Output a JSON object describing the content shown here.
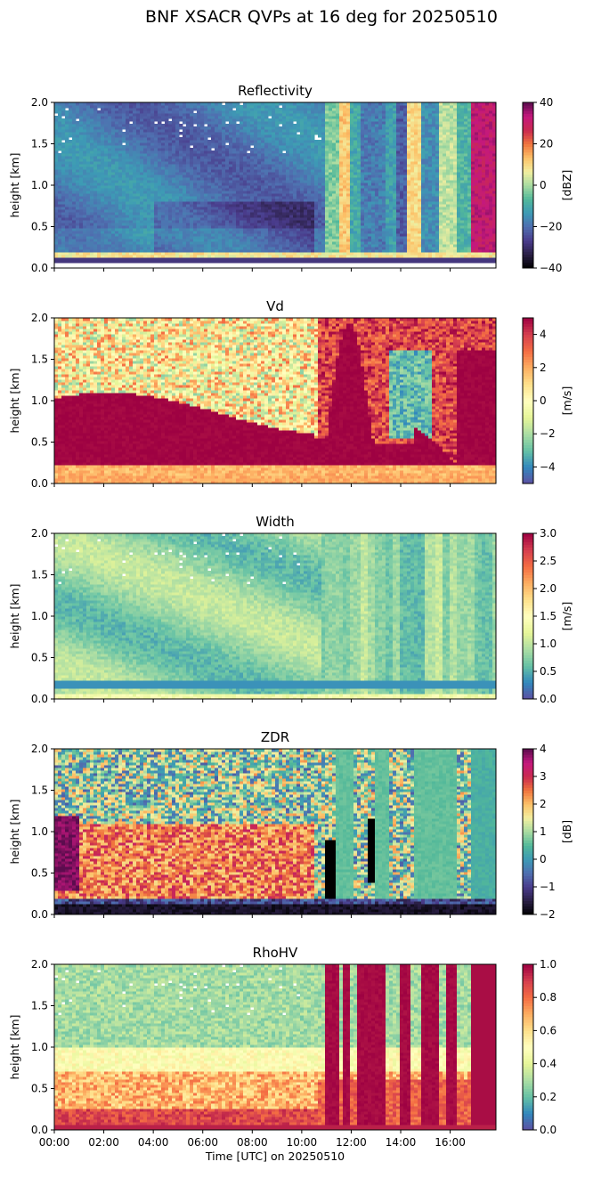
{
  "figure_title": "BNF XSACR QVPs at 16 deg for 20250510",
  "chart_data": [
    {
      "type": "heatmap",
      "title": "Reflectivity",
      "ylabel": "height [km]",
      "ylim": [
        0,
        2.0
      ],
      "yticks": [
        "0.0",
        "0.5",
        "1.0",
        "1.5",
        "2.0"
      ],
      "xlim_hours": [
        0,
        17.85
      ],
      "xticks": [
        "00:00",
        "02:00",
        "04:00",
        "06:00",
        "08:00",
        "10:00",
        "12:00",
        "14:00",
        "16:00"
      ],
      "colorbar": {
        "label": "[dBZ]",
        "vmin": -40,
        "vmax": 40,
        "ticks": [
          "40",
          "20",
          "0",
          "−20",
          "−40"
        ],
        "cmap": "ChaseSpectral"
      }
    },
    {
      "type": "heatmap",
      "title": "Vd",
      "ylabel": "height [km]",
      "ylim": [
        0,
        2.0
      ],
      "yticks": [
        "0.0",
        "0.5",
        "1.0",
        "1.5",
        "2.0"
      ],
      "xlim_hours": [
        0,
        17.85
      ],
      "colorbar": {
        "label": "[m/s]",
        "vmin": -5,
        "vmax": 5,
        "ticks": [
          "4",
          "2",
          "0",
          "−2",
          "−4"
        ],
        "cmap": "Spectral_r"
      }
    },
    {
      "type": "heatmap",
      "title": "Width",
      "ylabel": "height [km]",
      "ylim": [
        0,
        2.0
      ],
      "yticks": [
        "0.0",
        "0.5",
        "1.0",
        "1.5",
        "2.0"
      ],
      "xlim_hours": [
        0,
        17.85
      ],
      "colorbar": {
        "label": "[m/s]",
        "vmin": 0,
        "vmax": 3,
        "ticks": [
          "3.0",
          "2.5",
          "2.0",
          "1.5",
          "1.0",
          "0.5",
          "0.0"
        ],
        "cmap": "Spectral_r"
      }
    },
    {
      "type": "heatmap",
      "title": "ZDR",
      "ylabel": "height [km]",
      "ylim": [
        0,
        2.0
      ],
      "yticks": [
        "0.0",
        "0.5",
        "1.0",
        "1.5",
        "2.0"
      ],
      "xlim_hours": [
        0,
        17.85
      ],
      "colorbar": {
        "label": "[dB]",
        "vmin": -2,
        "vmax": 4,
        "ticks": [
          "4",
          "3",
          "2",
          "1",
          "0",
          "−1",
          "−2"
        ],
        "cmap": "ChaseSpectral"
      }
    },
    {
      "type": "heatmap",
      "title": "RhoHV",
      "ylabel": "height [km]",
      "xlabel": "Time [UTC] on 20250510",
      "ylim": [
        0,
        2.0
      ],
      "yticks": [
        "0.0",
        "0.5",
        "1.0",
        "1.5",
        "2.0"
      ],
      "xlim_hours": [
        0,
        17.85
      ],
      "xticks": [
        "00:00",
        "02:00",
        "04:00",
        "06:00",
        "08:00",
        "10:00",
        "12:00",
        "14:00",
        "16:00"
      ],
      "colorbar": {
        "label": "",
        "vmin": 0,
        "vmax": 1,
        "ticks": [
          "1.0",
          "0.8",
          "0.6",
          "0.4",
          "0.2",
          "0.0"
        ],
        "cmap": "Spectral_r"
      }
    }
  ]
}
